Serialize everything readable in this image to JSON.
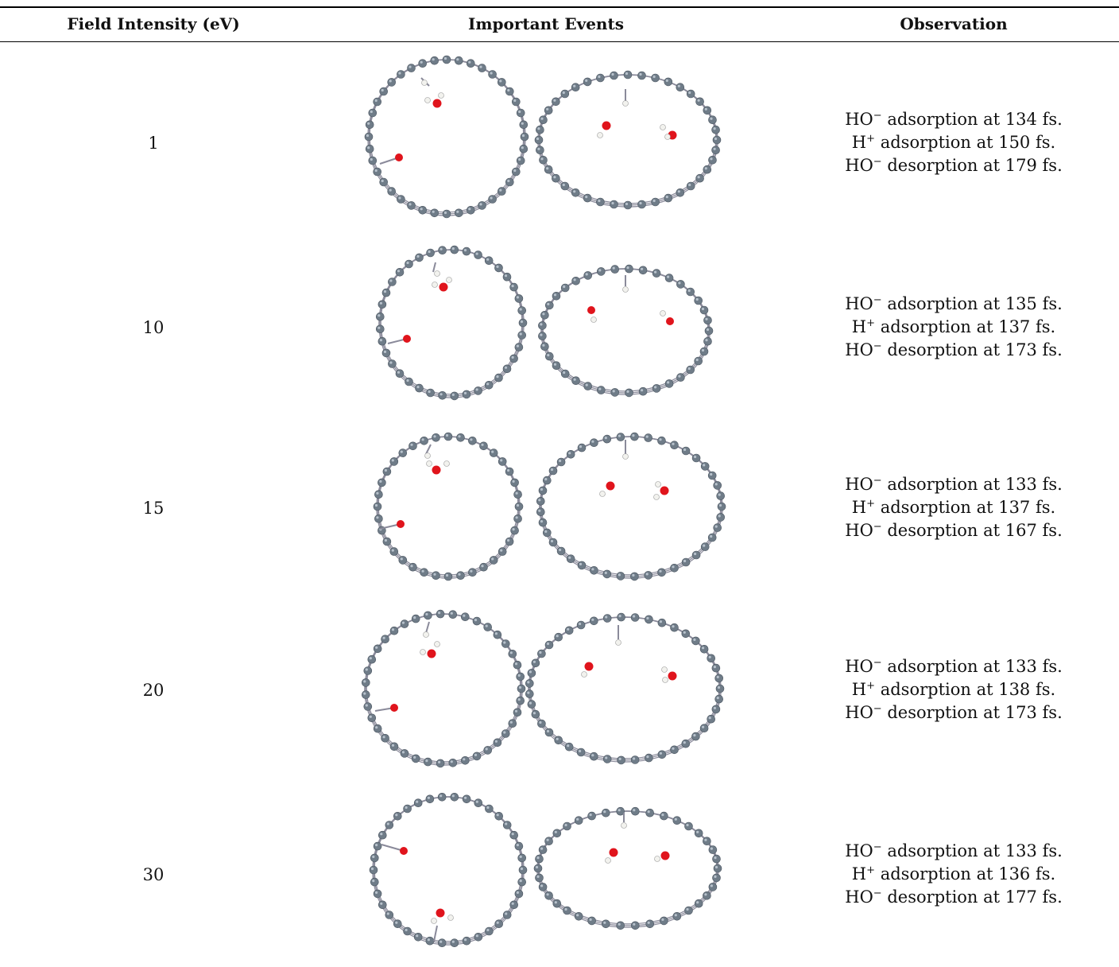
{
  "table": {
    "headers": {
      "field_intensity": "Field Intensity (eV)",
      "events": "Important Events",
      "observation": "Observation"
    },
    "rows": [
      {
        "field": "1",
        "obs": [
          {
            "species": "HO",
            "charge": "−",
            "text": " adsorption at 134 fs."
          },
          {
            "species": "H",
            "charge": "+",
            "text": " adsorption at 150 fs."
          },
          {
            "species": "HO",
            "charge": "−",
            "text": " desorption at 179 fs."
          }
        ]
      },
      {
        "field": "10",
        "obs": [
          {
            "species": "HO",
            "charge": "−",
            "text": " adsorption at 135 fs."
          },
          {
            "species": "H",
            "charge": "+",
            "text": " adsorption at 137 fs."
          },
          {
            "species": "HO",
            "charge": "−",
            "text": " desorption at 173 fs."
          }
        ]
      },
      {
        "field": "15",
        "obs": [
          {
            "species": "HO",
            "charge": "−",
            "text": " adsorption at 133 fs."
          },
          {
            "species": "H",
            "charge": "+",
            "text": " adsorption at 137 fs."
          },
          {
            "species": "HO",
            "charge": "−",
            "text": " desorption at 167 fs."
          }
        ]
      },
      {
        "field": "20",
        "obs": [
          {
            "species": "HO",
            "charge": "−",
            "text": " adsorption at 133 fs."
          },
          {
            "species": "H",
            "charge": "+",
            "text": " adsorption at 138 fs."
          },
          {
            "species": "HO",
            "charge": "−",
            "text": " desorption at 173 fs."
          }
        ]
      },
      {
        "field": "30",
        "obs": [
          {
            "species": "HO",
            "charge": "−",
            "text": " adsorption at 133 fs."
          },
          {
            "species": "H",
            "charge": "+",
            "text": " adsorption at 136 fs."
          },
          {
            "species": "HO",
            "charge": "−",
            "text": " desorption at 177 fs."
          }
        ]
      }
    ]
  },
  "colors": {
    "carbon": "#6f7c88",
    "carbon_highlight": "#b8c2cc",
    "oxygen": "#e0141c",
    "hydrogen": "#f2f2ee",
    "bond": "#8a8a9a"
  }
}
